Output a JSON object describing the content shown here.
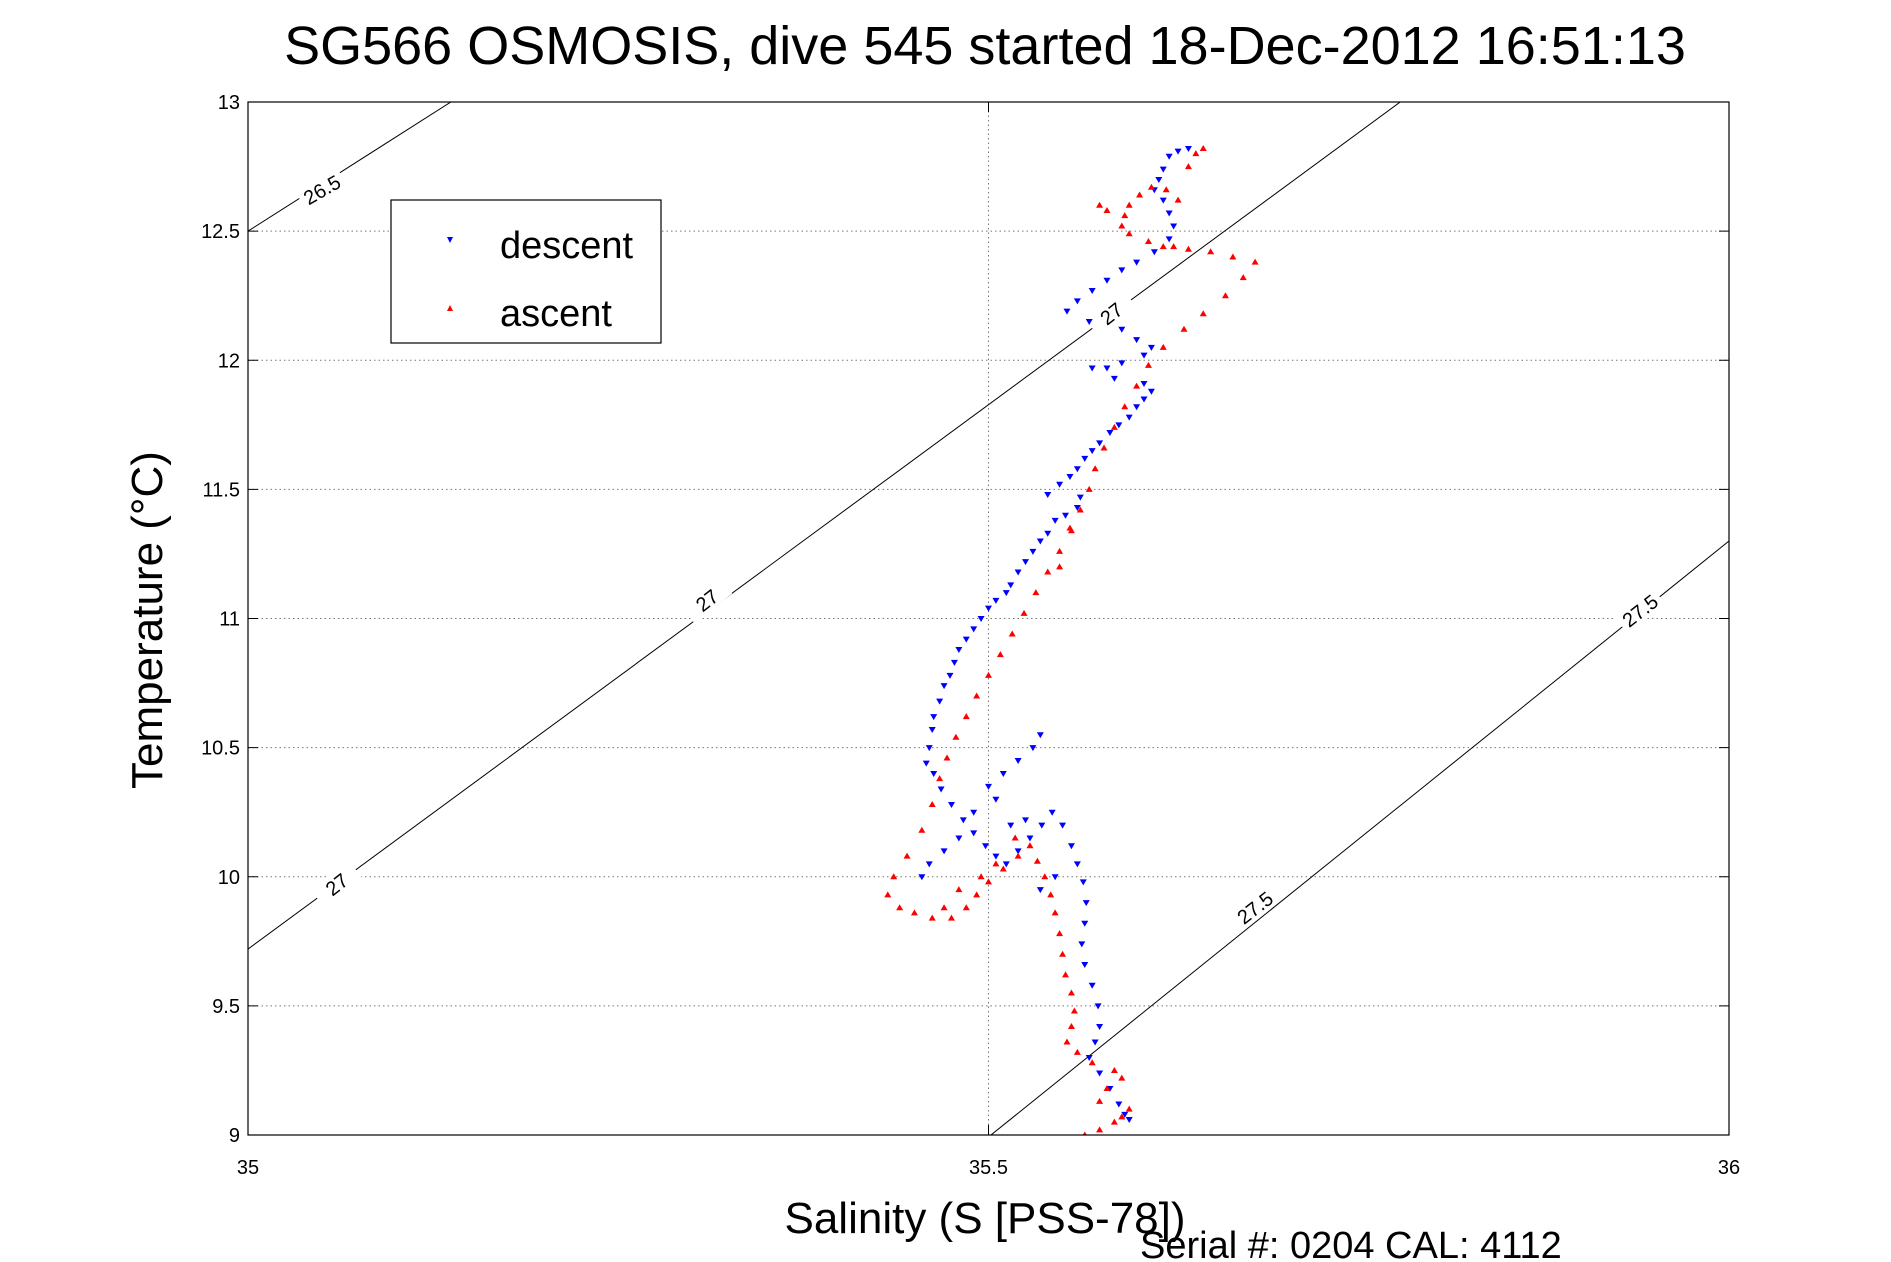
{
  "chart_data": {
    "type": "scatter",
    "title": "SG566 OSMOSIS, dive 545 started 18-Dec-2012 16:51:13",
    "xlabel": "Salinity (S [PSS-78])",
    "ylabel": "Temperature (°C)",
    "xlim": [
      35,
      36
    ],
    "ylim": [
      9,
      13
    ],
    "xticks": [
      "35",
      "35.5",
      "36"
    ],
    "yticks": [
      "9",
      "9.5",
      "10",
      "10.5",
      "11",
      "11.5",
      "12",
      "12.5",
      "13"
    ],
    "grid": true,
    "legend_position": "top-left",
    "footer": "Serial #: 0204  CAL: 4112",
    "series": [
      {
        "name": "descent",
        "color": "#0000ff",
        "marker": "triangle-down",
        "points": [
          [
            35.635,
            12.82
          ],
          [
            35.628,
            12.81
          ],
          [
            35.622,
            12.79
          ],
          [
            35.618,
            12.74
          ],
          [
            35.615,
            12.7
          ],
          [
            35.612,
            12.66
          ],
          [
            35.618,
            12.62
          ],
          [
            35.622,
            12.57
          ],
          [
            35.625,
            12.52
          ],
          [
            35.622,
            12.47
          ],
          [
            35.612,
            12.42
          ],
          [
            35.6,
            12.38
          ],
          [
            35.59,
            12.35
          ],
          [
            35.58,
            12.31
          ],
          [
            35.57,
            12.27
          ],
          [
            35.56,
            12.23
          ],
          [
            35.553,
            12.19
          ],
          [
            35.568,
            12.15
          ],
          [
            35.59,
            12.12
          ],
          [
            35.6,
            12.08
          ],
          [
            35.61,
            12.05
          ],
          [
            35.605,
            12.02
          ],
          [
            35.59,
            11.99
          ],
          [
            35.58,
            11.97
          ],
          [
            35.57,
            11.97
          ],
          [
            35.585,
            11.93
          ],
          [
            35.605,
            11.91
          ],
          [
            35.61,
            11.88
          ],
          [
            35.605,
            11.85
          ],
          [
            35.6,
            11.82
          ],
          [
            35.595,
            11.78
          ],
          [
            35.588,
            11.75
          ],
          [
            35.582,
            11.72
          ],
          [
            35.575,
            11.68
          ],
          [
            35.57,
            11.65
          ],
          [
            35.565,
            11.62
          ],
          [
            35.56,
            11.58
          ],
          [
            35.555,
            11.55
          ],
          [
            35.548,
            11.52
          ],
          [
            35.54,
            11.48
          ],
          [
            35.562,
            11.47
          ],
          [
            35.56,
            11.43
          ],
          [
            35.552,
            11.4
          ],
          [
            35.545,
            11.38
          ],
          [
            35.54,
            11.33
          ],
          [
            35.535,
            11.3
          ],
          [
            35.53,
            11.26
          ],
          [
            35.525,
            11.22
          ],
          [
            35.52,
            11.18
          ],
          [
            35.515,
            11.13
          ],
          [
            35.512,
            11.1
          ],
          [
            35.505,
            11.07
          ],
          [
            35.5,
            11.04
          ],
          [
            35.495,
            11.0
          ],
          [
            35.49,
            10.96
          ],
          [
            35.485,
            10.92
          ],
          [
            35.48,
            10.88
          ],
          [
            35.477,
            10.83
          ],
          [
            35.474,
            10.78
          ],
          [
            35.47,
            10.74
          ],
          [
            35.467,
            10.68
          ],
          [
            35.463,
            10.62
          ],
          [
            35.462,
            10.57
          ],
          [
            35.46,
            10.5
          ],
          [
            35.458,
            10.44
          ],
          [
            35.463,
            10.4
          ],
          [
            35.468,
            10.34
          ],
          [
            35.475,
            10.28
          ],
          [
            35.483,
            10.22
          ],
          [
            35.49,
            10.17
          ],
          [
            35.498,
            10.12
          ],
          [
            35.505,
            10.08
          ],
          [
            35.512,
            10.05
          ],
          [
            35.52,
            10.1
          ],
          [
            35.528,
            10.15
          ],
          [
            35.536,
            10.2
          ],
          [
            35.543,
            10.25
          ],
          [
            35.55,
            10.2
          ],
          [
            35.556,
            10.12
          ],
          [
            35.56,
            10.05
          ],
          [
            35.564,
            9.98
          ],
          [
            35.566,
            9.9
          ],
          [
            35.565,
            9.82
          ],
          [
            35.563,
            9.74
          ],
          [
            35.565,
            9.66
          ],
          [
            35.57,
            9.58
          ],
          [
            35.574,
            9.5
          ],
          [
            35.575,
            9.42
          ],
          [
            35.572,
            9.36
          ],
          [
            35.568,
            9.3
          ],
          [
            35.575,
            9.24
          ],
          [
            35.582,
            9.18
          ],
          [
            35.588,
            9.12
          ],
          [
            35.592,
            9.08
          ],
          [
            35.595,
            9.06
          ],
          [
            35.5,
            10.35
          ],
          [
            35.51,
            10.4
          ],
          [
            35.52,
            10.45
          ],
          [
            35.53,
            10.5
          ],
          [
            35.535,
            10.55
          ],
          [
            35.49,
            10.25
          ],
          [
            35.505,
            10.3
          ],
          [
            35.515,
            10.2
          ],
          [
            35.525,
            10.22
          ],
          [
            35.48,
            10.15
          ],
          [
            35.47,
            10.1
          ],
          [
            35.46,
            10.05
          ],
          [
            35.455,
            10.0
          ],
          [
            35.545,
            10.0
          ],
          [
            35.535,
            9.95
          ]
        ]
      },
      {
        "name": "ascent",
        "color": "#ff0000",
        "marker": "triangle-up",
        "points": [
          [
            35.595,
            9.1
          ],
          [
            35.59,
            9.07
          ],
          [
            35.585,
            9.05
          ],
          [
            35.575,
            9.02
          ],
          [
            35.565,
            9.0
          ],
          [
            35.575,
            9.13
          ],
          [
            35.58,
            9.18
          ],
          [
            35.59,
            9.22
          ],
          [
            35.585,
            9.25
          ],
          [
            35.57,
            9.28
          ],
          [
            35.56,
            9.32
          ],
          [
            35.553,
            9.36
          ],
          [
            35.556,
            9.42
          ],
          [
            35.558,
            9.48
          ],
          [
            35.556,
            9.55
          ],
          [
            35.552,
            9.62
          ],
          [
            35.55,
            9.7
          ],
          [
            35.548,
            9.78
          ],
          [
            35.545,
            9.86
          ],
          [
            35.542,
            9.93
          ],
          [
            35.538,
            10.0
          ],
          [
            35.533,
            10.06
          ],
          [
            35.528,
            10.12
          ],
          [
            35.52,
            10.08
          ],
          [
            35.51,
            10.03
          ],
          [
            35.5,
            9.98
          ],
          [
            35.492,
            9.93
          ],
          [
            35.485,
            9.88
          ],
          [
            35.475,
            9.84
          ],
          [
            35.462,
            9.84
          ],
          [
            35.45,
            9.86
          ],
          [
            35.44,
            9.88
          ],
          [
            35.432,
            9.93
          ],
          [
            35.436,
            10.0
          ],
          [
            35.445,
            10.08
          ],
          [
            35.455,
            10.18
          ],
          [
            35.462,
            10.28
          ],
          [
            35.467,
            10.38
          ],
          [
            35.472,
            10.46
          ],
          [
            35.478,
            10.54
          ],
          [
            35.485,
            10.62
          ],
          [
            35.492,
            10.7
          ],
          [
            35.5,
            10.78
          ],
          [
            35.508,
            10.86
          ],
          [
            35.516,
            10.94
          ],
          [
            35.524,
            11.02
          ],
          [
            35.532,
            11.1
          ],
          [
            35.54,
            11.18
          ],
          [
            35.548,
            11.26
          ],
          [
            35.556,
            11.34
          ],
          [
            35.562,
            11.42
          ],
          [
            35.568,
            11.5
          ],
          [
            35.572,
            11.58
          ],
          [
            35.578,
            11.66
          ],
          [
            35.585,
            11.74
          ],
          [
            35.592,
            11.82
          ],
          [
            35.6,
            11.9
          ],
          [
            35.608,
            11.98
          ],
          [
            35.618,
            12.05
          ],
          [
            35.632,
            12.12
          ],
          [
            35.645,
            12.18
          ],
          [
            35.66,
            12.25
          ],
          [
            35.672,
            12.32
          ],
          [
            35.68,
            12.38
          ],
          [
            35.665,
            12.4
          ],
          [
            35.65,
            12.42
          ],
          [
            35.635,
            12.43
          ],
          [
            35.625,
            12.44
          ],
          [
            35.618,
            12.44
          ],
          [
            35.608,
            12.46
          ],
          [
            35.595,
            12.49
          ],
          [
            35.59,
            12.52
          ],
          [
            35.592,
            12.56
          ],
          [
            35.595,
            12.6
          ],
          [
            35.602,
            12.64
          ],
          [
            35.61,
            12.67
          ],
          [
            35.62,
            12.66
          ],
          [
            35.628,
            12.62
          ],
          [
            35.635,
            12.75
          ],
          [
            35.64,
            12.8
          ],
          [
            35.645,
            12.82
          ],
          [
            35.575,
            12.6
          ],
          [
            35.58,
            12.58
          ],
          [
            35.555,
            11.35
          ],
          [
            35.548,
            11.2
          ],
          [
            35.518,
            10.15
          ],
          [
            35.505,
            10.05
          ],
          [
            35.495,
            10.0
          ],
          [
            35.48,
            9.95
          ],
          [
            35.47,
            9.88
          ]
        ]
      }
    ],
    "contours": [
      {
        "label": "26.5",
        "points": [
          [
            35.0,
            12.5
          ],
          [
            35.137,
            13.0
          ]
        ]
      },
      {
        "label": "27",
        "points": [
          [
            35.0,
            9.72
          ],
          [
            35.778,
            13.0
          ]
        ]
      },
      {
        "label": "27.5",
        "points": [
          [
            35.48,
            8.9
          ],
          [
            36.0,
            11.3
          ]
        ]
      }
    ],
    "contour_labels": [
      {
        "text": "26.5",
        "x": 35.05,
        "y": 12.66,
        "angle": -30
      },
      {
        "text": "27",
        "x": 35.583,
        "y": 12.18,
        "angle": -38
      },
      {
        "text": "27",
        "x": 35.31,
        "y": 11.07,
        "angle": -38
      },
      {
        "text": "27",
        "x": 35.06,
        "y": 9.97,
        "angle": -38
      },
      {
        "text": "27.5",
        "x": 35.68,
        "y": 9.88,
        "angle": -38
      },
      {
        "text": "27.5",
        "x": 35.94,
        "y": 11.03,
        "angle": -38
      }
    ]
  }
}
